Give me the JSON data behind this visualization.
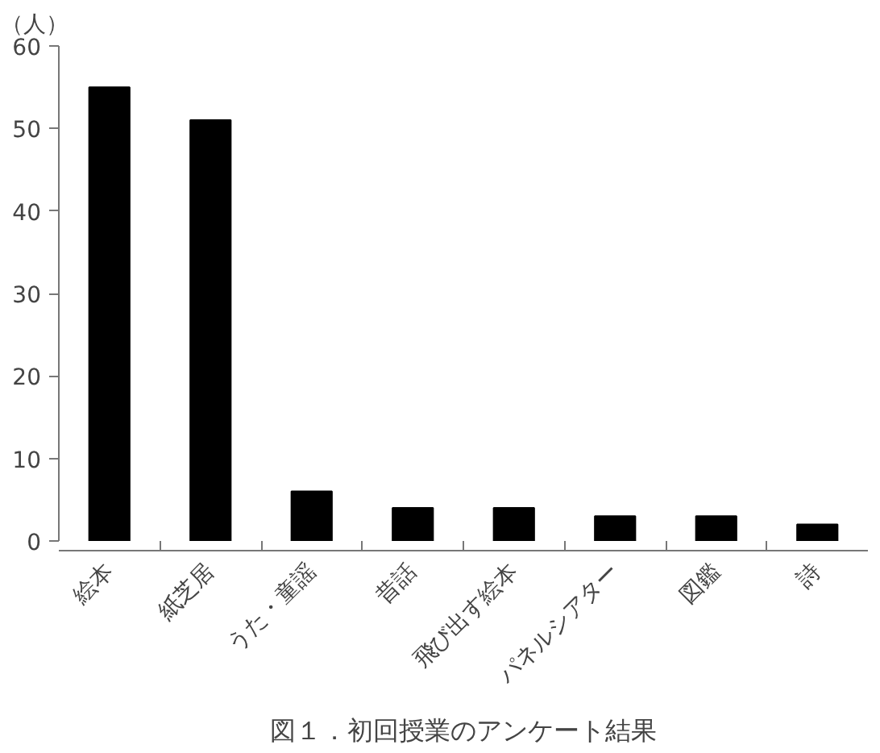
{
  "chart_data": {
    "type": "bar",
    "title": "図１．初回授業のアンケート結果",
    "ylabel": "（人）",
    "categories": [
      "絵本",
      "紙芝居",
      "うた・童謡",
      "昔話",
      "飛び出す絵本",
      "パネルシアター",
      "図鑑",
      "詩"
    ],
    "values": [
      55,
      51,
      6,
      4,
      4,
      3,
      3,
      2
    ],
    "color": "#000000",
    "ylim": [
      0,
      60
    ],
    "yticks": [
      0,
      10,
      20,
      30,
      40,
      50,
      60
    ],
    "grid": false
  }
}
